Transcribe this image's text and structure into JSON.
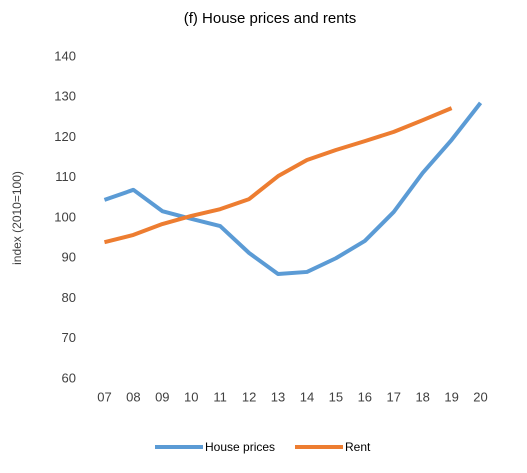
{
  "chart_data": {
    "type": "line",
    "title": "(f) House prices and rents",
    "y_label": "index (2010=100)",
    "categories": [
      "07",
      "08",
      "09",
      "10",
      "11",
      "12",
      "13",
      "14",
      "15",
      "16",
      "17",
      "18",
      "19",
      "20"
    ],
    "series": [
      {
        "name": "House prices",
        "color": "#5b9bd5",
        "values": [
          104.5,
          107,
          101.7,
          99.8,
          98,
          91.3,
          86.1,
          86.6,
          90,
          94.3,
          101.5,
          111.2,
          119.4,
          128.6
        ]
      },
      {
        "name": "Rent",
        "color": "#ed7d31",
        "values": [
          94,
          95.8,
          98.5,
          100.5,
          102.2,
          104.7,
          110.4,
          114.4,
          116.9,
          119.1,
          121.4,
          124.3,
          127.3,
          null
        ]
      }
    ],
    "ylim": [
      60,
      140
    ],
    "yticks": [
      60,
      70,
      80,
      90,
      100,
      110,
      120,
      130,
      140
    ],
    "grid": false
  }
}
